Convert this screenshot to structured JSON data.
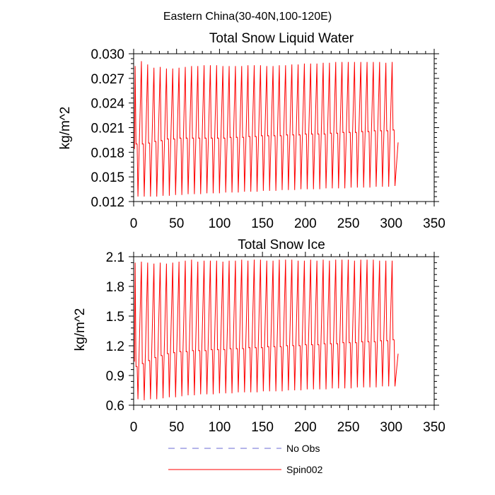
{
  "figure": {
    "suptitle": "Eastern China(30-40N,100-120E)"
  },
  "legend": {
    "placement": "bottom-center",
    "items": [
      {
        "label": "No Obs",
        "color": "#6a6ad6",
        "style": "dashed"
      },
      {
        "label": "Spin002",
        "color": "#ff0000",
        "style": "solid"
      }
    ]
  },
  "chart_data": [
    {
      "type": "line",
      "title": "Total Snow Liquid Water",
      "xlabel": "",
      "ylabel": "kg/m^2",
      "xlim": [
        0,
        350
      ],
      "ylim": [
        0.012,
        0.03
      ],
      "xticks": [
        0,
        50,
        100,
        150,
        200,
        250,
        300,
        350
      ],
      "yticks": [
        0.012,
        0.015,
        0.018,
        0.021,
        0.024,
        0.027,
        0.03
      ],
      "ytick_labels": [
        "0.012",
        "0.015",
        "0.018",
        "0.021",
        "0.024",
        "0.027",
        "0.030"
      ],
      "grid": false,
      "series": [
        {
          "name": "Spin002",
          "color": "#ff0000",
          "x_start": 1,
          "x_end": 308,
          "cycle_length": 7.3,
          "start_value": 0.0184,
          "end_value": 0.0192,
          "peak_values": [
            0.0285,
            0.0291,
            0.0287,
            0.0283,
            0.0284,
            0.0282,
            0.0282,
            0.0283,
            0.0284,
            0.0285,
            0.0285,
            0.0286,
            0.0286,
            0.0286,
            0.0285,
            0.0285,
            0.0285,
            0.0285,
            0.0286,
            0.0286,
            0.0286,
            0.0285,
            0.0285,
            0.0286,
            0.0286,
            0.0287,
            0.0287,
            0.0288,
            0.0288,
            0.0288,
            0.0289,
            0.0289,
            0.029,
            0.029,
            0.029,
            0.029,
            0.029,
            0.029,
            0.029,
            0.029,
            0.0289,
            0.029
          ],
          "trough_values": [
            0.0126,
            0.0126,
            0.0126,
            0.0126,
            0.0127,
            0.0127,
            0.0128,
            0.0128,
            0.0129,
            0.0129,
            0.0129,
            0.013,
            0.013,
            0.013,
            0.0131,
            0.0131,
            0.0131,
            0.0132,
            0.0132,
            0.0132,
            0.0133,
            0.0133,
            0.0133,
            0.0134,
            0.0134,
            0.0134,
            0.0135,
            0.0135,
            0.0135,
            0.0135,
            0.0136,
            0.0136,
            0.0136,
            0.0136,
            0.0137,
            0.0137,
            0.0137,
            0.0137,
            0.0138,
            0.0138,
            0.0138,
            0.0139
          ],
          "mid_values": [
            0.019,
            0.019,
            0.0191,
            0.0193,
            0.0194,
            0.0196,
            0.0196,
            0.0197,
            0.0197,
            0.0197,
            0.0197,
            0.0197,
            0.0197,
            0.0197,
            0.0197,
            0.0198,
            0.0198,
            0.0198,
            0.0199,
            0.0199,
            0.02,
            0.02,
            0.02,
            0.02,
            0.0201,
            0.0201,
            0.0201,
            0.0202,
            0.0202,
            0.0202,
            0.0202,
            0.0203,
            0.0203,
            0.0204,
            0.0204,
            0.0204,
            0.0205,
            0.0205,
            0.0206,
            0.0206,
            0.0206,
            0.0207
          ]
        },
        {
          "name": "No Obs",
          "color": "#6a6ad6",
          "values": []
        }
      ]
    },
    {
      "type": "line",
      "title": "Total Snow Ice",
      "xlabel": "",
      "ylabel": "kg/m^2",
      "xlim": [
        0,
        350
      ],
      "ylim": [
        0.6,
        2.1
      ],
      "xticks": [
        0,
        50,
        100,
        150,
        200,
        250,
        300,
        350
      ],
      "yticks": [
        0.6,
        0.9,
        1.2,
        1.5,
        1.8,
        2.1
      ],
      "ytick_labels": [
        "0.6",
        "0.9",
        "1.2",
        "1.5",
        "1.8",
        "2.1"
      ],
      "grid": false,
      "series": [
        {
          "name": "Spin002",
          "color": "#ff0000",
          "x_start": 1,
          "x_end": 308,
          "cycle_length": 7.3,
          "start_value": 1.04,
          "end_value": 1.12,
          "peak_values": [
            2.04,
            2.05,
            2.04,
            2.03,
            2.04,
            2.03,
            2.04,
            2.05,
            2.06,
            2.07,
            2.05,
            2.06,
            2.06,
            2.06,
            2.05,
            2.06,
            2.06,
            2.07,
            2.06,
            2.07,
            2.07,
            2.06,
            2.06,
            2.07,
            2.07,
            2.07,
            2.06,
            2.06,
            2.07,
            2.06,
            2.07,
            2.06,
            2.07,
            2.07,
            2.07,
            2.06,
            2.07,
            2.07,
            2.07,
            2.06,
            2.06,
            2.06
          ],
          "trough_values": [
            0.66,
            0.65,
            0.66,
            0.66,
            0.67,
            0.68,
            0.68,
            0.69,
            0.7,
            0.7,
            0.71,
            0.71,
            0.71,
            0.72,
            0.72,
            0.72,
            0.73,
            0.73,
            0.73,
            0.73,
            0.74,
            0.74,
            0.74,
            0.74,
            0.75,
            0.75,
            0.75,
            0.76,
            0.76,
            0.76,
            0.76,
            0.77,
            0.77,
            0.77,
            0.77,
            0.78,
            0.78,
            0.78,
            0.78,
            0.79,
            0.79,
            0.79
          ],
          "mid_values": [
            0.99,
            1.02,
            1.05,
            1.08,
            1.1,
            1.12,
            1.13,
            1.14,
            1.14,
            1.15,
            1.15,
            1.15,
            1.16,
            1.16,
            1.16,
            1.17,
            1.17,
            1.17,
            1.18,
            1.18,
            1.18,
            1.19,
            1.19,
            1.19,
            1.2,
            1.2,
            1.2,
            1.21,
            1.21,
            1.21,
            1.22,
            1.22,
            1.22,
            1.23,
            1.23,
            1.23,
            1.24,
            1.24,
            1.24,
            1.25,
            1.25,
            1.26
          ]
        },
        {
          "name": "No Obs",
          "color": "#6a6ad6",
          "values": []
        }
      ]
    }
  ]
}
